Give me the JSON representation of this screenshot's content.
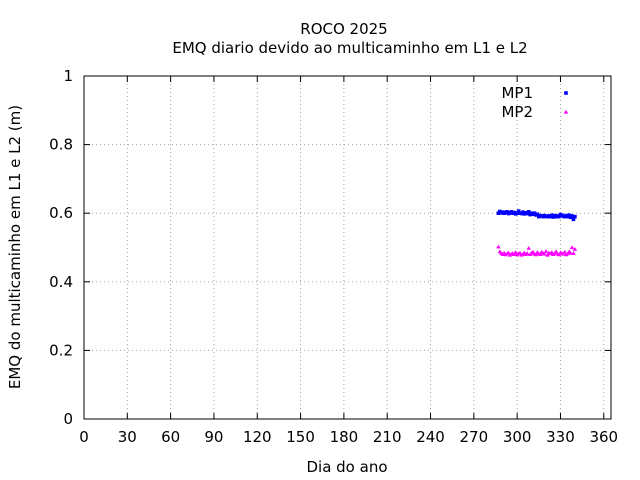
{
  "chart_data": {
    "type": "scatter",
    "title": "ROCO 2025",
    "subtitle": "EMQ diario devido ao multicaminho em L1 e L2",
    "xlabel": "Dia do ano",
    "ylabel": "EMQ do multicaminho em L1 e L2 (m)",
    "xlim": [
      0,
      365
    ],
    "ylim": [
      0,
      1
    ],
    "xticks": [
      0,
      30,
      60,
      90,
      120,
      150,
      180,
      210,
      240,
      270,
      300,
      330,
      360
    ],
    "yticks": [
      0,
      0.2,
      0.4,
      0.6,
      0.8,
      1
    ],
    "grid": true,
    "legend_position": "top-right",
    "series": [
      {
        "name": "MP1",
        "color": "#0000ff",
        "marker": "square",
        "x": [
          287,
          288,
          289,
          290,
          291,
          292,
          293,
          294,
          295,
          296,
          297,
          298,
          299,
          300,
          301,
          302,
          303,
          304,
          305,
          306,
          307,
          308,
          309,
          310,
          311,
          312,
          313,
          314,
          315,
          316,
          317,
          318,
          319,
          320,
          321,
          322,
          323,
          324,
          325,
          326,
          327,
          328,
          329,
          330,
          331,
          332,
          333,
          334,
          335,
          336,
          337,
          338,
          339,
          340
        ],
        "y": [
          0.6,
          0.605,
          0.601,
          0.603,
          0.6,
          0.602,
          0.604,
          0.599,
          0.601,
          0.604,
          0.6,
          0.602,
          0.598,
          0.6,
          0.606,
          0.6,
          0.599,
          0.603,
          0.598,
          0.601,
          0.599,
          0.604,
          0.596,
          0.6,
          0.597,
          0.6,
          0.595,
          0.597,
          0.59,
          0.593,
          0.592,
          0.59,
          0.593,
          0.591,
          0.59,
          0.592,
          0.59,
          0.594,
          0.589,
          0.593,
          0.59,
          0.592,
          0.59,
          0.596,
          0.594,
          0.591,
          0.59,
          0.593,
          0.59,
          0.594,
          0.588,
          0.592,
          0.582,
          0.59
        ]
      },
      {
        "name": "MP2",
        "color": "#ff00ff",
        "marker": "triangle",
        "x": [
          287,
          288,
          289,
          290,
          291,
          292,
          293,
          294,
          295,
          296,
          297,
          298,
          299,
          300,
          301,
          302,
          303,
          304,
          305,
          306,
          307,
          308,
          309,
          310,
          311,
          312,
          313,
          314,
          315,
          316,
          317,
          318,
          319,
          320,
          321,
          322,
          323,
          324,
          325,
          326,
          327,
          328,
          329,
          330,
          331,
          332,
          333,
          334,
          335,
          336,
          337,
          338,
          339,
          340
        ],
        "y": [
          0.502,
          0.488,
          0.483,
          0.48,
          0.484,
          0.479,
          0.482,
          0.485,
          0.478,
          0.481,
          0.483,
          0.48,
          0.486,
          0.479,
          0.482,
          0.484,
          0.478,
          0.481,
          0.485,
          0.48,
          0.483,
          0.498,
          0.48,
          0.484,
          0.487,
          0.481,
          0.479,
          0.486,
          0.482,
          0.48,
          0.487,
          0.483,
          0.481,
          0.489,
          0.478,
          0.484,
          0.482,
          0.486,
          0.48,
          0.483,
          0.488,
          0.481,
          0.479,
          0.485,
          0.483,
          0.481,
          0.487,
          0.479,
          0.482,
          0.488,
          0.484,
          0.5,
          0.483,
          0.495
        ]
      }
    ]
  }
}
